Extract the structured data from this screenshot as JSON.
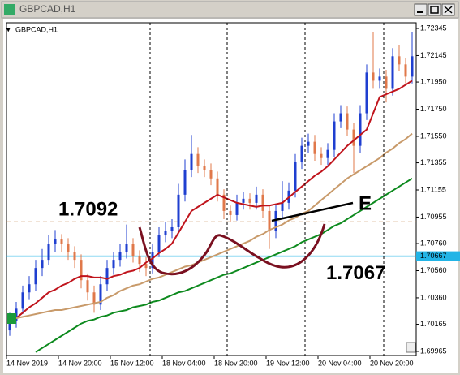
{
  "window_title": "GBPCAD,H1",
  "chart_data": {
    "type": "candlestick",
    "title": "GBPCAD,H1",
    "categories": [
      "14 Nov 2019",
      null,
      null,
      null,
      null,
      null,
      null,
      null,
      "14 Nov 20:00",
      null,
      null,
      null,
      null,
      null,
      null,
      null,
      "15 Nov 12:00",
      null,
      null,
      null,
      null,
      null,
      null,
      null,
      "18 Nov 04:00",
      null,
      null,
      null,
      null,
      null,
      null,
      null,
      "18 Nov 20:00",
      null,
      null,
      null,
      null,
      null,
      null,
      null,
      "19 Nov 12:00",
      null,
      null,
      null,
      null,
      null,
      null,
      null,
      "20 Nov 04:00",
      null,
      null,
      null,
      null,
      null,
      null,
      null,
      "20 Nov 20:00",
      null,
      null,
      null,
      null,
      null,
      null
    ],
    "candles": [
      [
        1.7012,
        1.7025,
        1.7008,
        1.7019
      ],
      [
        1.7019,
        1.7033,
        1.7014,
        1.7028
      ],
      [
        1.7028,
        1.7045,
        1.7024,
        1.704
      ],
      [
        1.704,
        1.7052,
        1.7035,
        1.7046
      ],
      [
        1.7046,
        1.7064,
        1.7041,
        1.7058
      ],
      [
        1.7058,
        1.7072,
        1.7052,
        1.7064
      ],
      [
        1.7064,
        1.7082,
        1.706,
        1.7076
      ],
      [
        1.7076,
        1.7086,
        1.707,
        1.7079
      ],
      [
        1.7079,
        1.7083,
        1.707,
        1.7076
      ],
      [
        1.7076,
        1.708,
        1.7064,
        1.707
      ],
      [
        1.707,
        1.7074,
        1.7058,
        1.7064
      ],
      [
        1.7064,
        1.7068,
        1.7043,
        1.7049
      ],
      [
        1.7049,
        1.7054,
        1.7034,
        1.704
      ],
      [
        1.704,
        1.7045,
        1.7025,
        1.7031
      ],
      [
        1.7031,
        1.7052,
        1.7027,
        1.7046
      ],
      [
        1.7046,
        1.7064,
        1.7041,
        1.7058
      ],
      [
        1.7058,
        1.707,
        1.7053,
        1.7064
      ],
      [
        1.7064,
        1.7076,
        1.7059,
        1.707
      ],
      [
        1.707,
        1.709,
        1.7065,
        1.7076
      ],
      [
        1.7076,
        1.708,
        1.7062,
        1.7067
      ],
      [
        1.7067,
        1.7071,
        1.7055,
        1.7061
      ],
      [
        1.7061,
        1.7066,
        1.7052,
        1.7058
      ],
      [
        1.7058,
        1.7076,
        1.7054,
        1.707
      ],
      [
        1.707,
        1.7088,
        1.7066,
        1.7082
      ],
      [
        1.7082,
        1.7092,
        1.7077,
        1.7085
      ],
      [
        1.7085,
        1.7094,
        1.708,
        1.7088
      ],
      [
        1.7088,
        1.712,
        1.7083,
        1.7112
      ],
      [
        1.7112,
        1.7138,
        1.7107,
        1.713
      ],
      [
        1.713,
        1.7156,
        1.7125,
        1.7142
      ],
      [
        1.7142,
        1.7147,
        1.7128,
        1.7133
      ],
      [
        1.7133,
        1.7138,
        1.7125,
        1.713
      ],
      [
        1.713,
        1.7135,
        1.7119,
        1.7124
      ],
      [
        1.7124,
        1.7129,
        1.7107,
        1.7112
      ],
      [
        1.7112,
        1.7116,
        1.7094,
        1.71
      ],
      [
        1.71,
        1.7104,
        1.7092,
        1.7097
      ],
      [
        1.7097,
        1.7112,
        1.7093,
        1.7106
      ],
      [
        1.7106,
        1.7114,
        1.7101,
        1.7109
      ],
      [
        1.7109,
        1.7113,
        1.7101,
        1.7106
      ],
      [
        1.7106,
        1.7118,
        1.7101,
        1.7112
      ],
      [
        1.7112,
        1.7116,
        1.7095,
        1.71
      ],
      [
        1.71,
        1.7104,
        1.7072,
        1.7085
      ],
      [
        1.7085,
        1.7105,
        1.708,
        1.71
      ],
      [
        1.71,
        1.7122,
        1.7095,
        1.7106
      ],
      [
        1.7106,
        1.7121,
        1.7101,
        1.7115
      ],
      [
        1.7115,
        1.7142,
        1.711,
        1.7136
      ],
      [
        1.7136,
        1.7154,
        1.7131,
        1.7148
      ],
      [
        1.7148,
        1.7157,
        1.7143,
        1.7151
      ],
      [
        1.7151,
        1.7156,
        1.7137,
        1.7142
      ],
      [
        1.7142,
        1.7147,
        1.7134,
        1.7139
      ],
      [
        1.7139,
        1.715,
        1.7134,
        1.7145
      ],
      [
        1.7145,
        1.7172,
        1.714,
        1.7166
      ],
      [
        1.7166,
        1.7178,
        1.7161,
        1.7172
      ],
      [
        1.7172,
        1.7177,
        1.7155,
        1.716
      ],
      [
        1.716,
        1.7165,
        1.7128,
        1.7148
      ],
      [
        1.7148,
        1.7178,
        1.7143,
        1.7172
      ],
      [
        1.7172,
        1.7208,
        1.7167,
        1.7202
      ],
      [
        1.7202,
        1.7232,
        1.719,
        1.7196
      ],
      [
        1.7196,
        1.7205,
        1.719,
        1.7199
      ],
      [
        1.7199,
        1.7204,
        1.718,
        1.719
      ],
      [
        1.719,
        1.722,
        1.7185,
        1.7214
      ],
      [
        1.7214,
        1.7222,
        1.7203,
        1.7208
      ],
      [
        1.7208,
        1.7213,
        1.7194,
        1.7199
      ],
      [
        1.7199,
        1.7232,
        1.7194,
        1.7214
      ]
    ],
    "up_color": "#1f3fd0",
    "down_color": "#e0784a",
    "series": [
      {
        "color": "#c0141c",
        "values": [
          1.7017,
          1.7021,
          1.7025,
          1.7029,
          1.7032,
          1.7036,
          1.704,
          1.7042,
          1.7045,
          1.7047,
          1.705,
          1.7052,
          1.7052,
          1.7051,
          1.7051,
          1.705,
          1.7052,
          1.7053,
          1.7055,
          1.7056,
          1.7058,
          1.7062,
          1.7065,
          1.7069,
          1.7072,
          1.7076,
          1.7084,
          1.7092,
          1.71,
          1.7103,
          1.7106,
          1.7109,
          1.7112,
          1.711,
          1.7108,
          1.7106,
          1.7105,
          1.7104,
          1.7103,
          1.7104,
          1.7104,
          1.7105,
          1.7106,
          1.711,
          1.7114,
          1.7118,
          1.7122,
          1.7126,
          1.7129,
          1.7133,
          1.7138,
          1.7143,
          1.7148,
          1.7152,
          1.7156,
          1.716,
          1.7172,
          1.7184,
          1.7186,
          1.7188,
          1.719,
          1.7193,
          1.7196
        ]
      },
      {
        "color": "#c89a6a",
        "values": [
          1.702,
          1.7021,
          1.7022,
          1.7023,
          1.7024,
          1.7025,
          1.7026,
          1.7027,
          1.7027,
          1.7028,
          1.7029,
          1.703,
          1.7031,
          1.7032,
          1.7033,
          1.7036,
          1.7038,
          1.7041,
          1.7043,
          1.7045,
          1.7046,
          1.7048,
          1.705,
          1.7051,
          1.7053,
          1.7055,
          1.7057,
          1.7059,
          1.706,
          1.7062,
          1.7064,
          1.7066,
          1.7068,
          1.707,
          1.7072,
          1.7074,
          1.7076,
          1.7078,
          1.7081,
          1.7083,
          1.7086,
          1.7088,
          1.709,
          1.7093,
          1.7095,
          1.7098,
          1.71,
          1.7104,
          1.7108,
          1.7112,
          1.7116,
          1.712,
          1.7124,
          1.7127,
          1.713,
          1.7133,
          1.7136,
          1.7139,
          1.7143,
          1.7146,
          1.715,
          1.7153,
          1.7157
        ]
      },
      {
        "color": "#0d8a1e",
        "values": [
          null,
          null,
          null,
          null,
          1.6996,
          1.6999,
          1.7002,
          1.7005,
          1.7008,
          1.7011,
          1.7014,
          1.7017,
          1.7019,
          1.702,
          1.7022,
          1.7023,
          1.7025,
          1.7026,
          1.7027,
          1.7029,
          1.703,
          1.7031,
          1.7033,
          1.7034,
          1.7036,
          1.7038,
          1.704,
          1.7041,
          1.7043,
          1.7045,
          1.7047,
          1.7049,
          1.7051,
          1.7053,
          1.7054,
          1.7056,
          1.7058,
          1.706,
          1.7062,
          1.7064,
          1.7066,
          1.7068,
          1.707,
          1.7072,
          1.7074,
          1.7077,
          1.7079,
          1.7081,
          1.7083,
          1.7086,
          1.7089,
          1.7091,
          1.7094,
          1.7097,
          1.71,
          1.7103,
          1.7106,
          1.7109,
          1.7112,
          1.7115,
          1.7118,
          1.7121,
          1.7124
        ]
      }
    ],
    "ylim": [
      1.69935,
      1.72387
    ],
    "yticks": [
      1.72345,
      1.72145,
      {
        "value": 1.7195,
        "label": "1.71950"
      },
      {
        "value": 1.7175,
        "label": "1.71750"
      },
      {
        "value": 1.7155,
        "label": "1.71550"
      },
      1.71355,
      1.71155,
      1.70955,
      {
        "value": 1.7076,
        "label": "1.70760"
      },
      {
        "value": 1.7056,
        "label": "1.70560"
      },
      {
        "value": 1.7036,
        "label": "1.70360"
      },
      1.70165,
      1.69965
    ],
    "current_price": 1.70667,
    "current_price_color": "#22b4e6",
    "level_annotation": 1.7092,
    "low_annotation": 1.7067,
    "point_annotation": "E"
  }
}
